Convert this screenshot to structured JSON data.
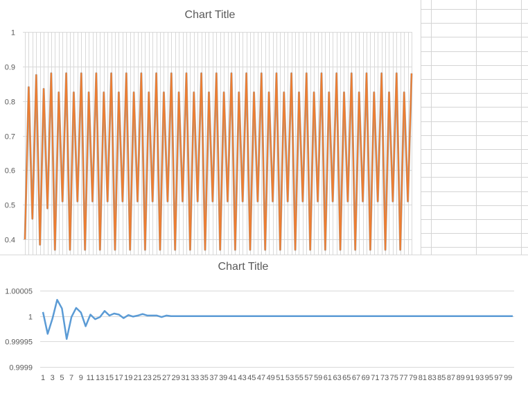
{
  "chart_data": [
    {
      "type": "line",
      "title": "Chart Title",
      "xlabel": "",
      "ylabel": "",
      "ylim": [
        0.35,
        1
      ],
      "y_ticks": [
        "1",
        "0.9",
        "0.8",
        "0.7",
        "0.6",
        "0.5",
        "0.4"
      ],
      "grid": "vertical and horizontal",
      "series": [
        {
          "color": "#ED7D31",
          "values": [
            0.4,
            0.84,
            0.46,
            0.875,
            0.385,
            0.835,
            0.49,
            0.88,
            0.37,
            0.825,
            0.51,
            0.88,
            0.37,
            0.825,
            0.51,
            0.88,
            0.37,
            0.825,
            0.51,
            0.88,
            0.37,
            0.825,
            0.51,
            0.88,
            0.37,
            0.825,
            0.51,
            0.88,
            0.37,
            0.825,
            0.51,
            0.88,
            0.37,
            0.825,
            0.51,
            0.88,
            0.37,
            0.825,
            0.51,
            0.88,
            0.37,
            0.825,
            0.51,
            0.88,
            0.37,
            0.825,
            0.51,
            0.88,
            0.37,
            0.825,
            0.51,
            0.88,
            0.37,
            0.825,
            0.51,
            0.88,
            0.37,
            0.825,
            0.51,
            0.88,
            0.37,
            0.825,
            0.51,
            0.88,
            0.37,
            0.825,
            0.51,
            0.88,
            0.37,
            0.825,
            0.51,
            0.88,
            0.37,
            0.825,
            0.51,
            0.88,
            0.37,
            0.825,
            0.51,
            0.88,
            0.37,
            0.825,
            0.51,
            0.88,
            0.37,
            0.825,
            0.51,
            0.88,
            0.37,
            0.825,
            0.51,
            0.88,
            0.37,
            0.825,
            0.51,
            0.88,
            0.37,
            0.825,
            0.51,
            0.88,
            0.37,
            0.825,
            0.51,
            0.88
          ]
        }
      ]
    },
    {
      "type": "line",
      "title": "Chart Title",
      "xlabel": "",
      "ylabel": "",
      "ylim": [
        0.9999,
        1.00007
      ],
      "y_ticks": [
        "1.00005",
        "1",
        "0.99995",
        "0.9999"
      ],
      "x_ticks": [
        "1",
        "3",
        "5",
        "7",
        "9",
        "11",
        "13",
        "15",
        "17",
        "19",
        "21",
        "23",
        "25",
        "27",
        "29",
        "31",
        "33",
        "35",
        "37",
        "39",
        "41",
        "43",
        "45",
        "47",
        "49",
        "51",
        "53",
        "55",
        "57",
        "59",
        "61",
        "63",
        "65",
        "67",
        "69",
        "71",
        "73",
        "75",
        "77",
        "79",
        "81",
        "83",
        "85",
        "87",
        "89",
        "91",
        "93",
        "95",
        "97",
        "99"
      ],
      "grid": "horizontal",
      "series": [
        {
          "color": "#5B9BD5",
          "values": [
            1.000008,
            0.999965,
            0.999995,
            1.000032,
            1.000015,
            0.999955,
            0.999998,
            1.000016,
            1.000007,
            0.99998,
            1.000003,
            0.999994,
            0.999998,
            1.00001,
            1.000001,
            1.000005,
            1.000003,
            0.999996,
            1.000002,
            0.999999,
            1.000001,
            1.000004,
            1.000001,
            1.000001,
            1.000001,
            0.999998,
            1.000001,
            1.0,
            1.0,
            1.0,
            1.0,
            1.0,
            1.0,
            1.0,
            1.0,
            1.0,
            1.0,
            1.0,
            1.0,
            1.0,
            1.0,
            1.0,
            1.0,
            1.0,
            1.0,
            1.0,
            1.0,
            1.0,
            1.0,
            1.0,
            1.0,
            1.0,
            1.0,
            1.0,
            1.0,
            1.0,
            1.0,
            1.0,
            1.0,
            1.0,
            1.0,
            1.0,
            1.0,
            1.0,
            1.0,
            1.0,
            1.0,
            1.0,
            1.0,
            1.0,
            1.0,
            1.0,
            1.0,
            1.0,
            1.0,
            1.0,
            1.0,
            1.0,
            1.0,
            1.0,
            1.0,
            1.0,
            1.0,
            1.0,
            1.0,
            1.0,
            1.0,
            1.0,
            1.0,
            1.0,
            1.0,
            1.0,
            1.0,
            1.0,
            1.0,
            1.0,
            1.0,
            1.0,
            1.0,
            1.0
          ]
        }
      ]
    }
  ]
}
